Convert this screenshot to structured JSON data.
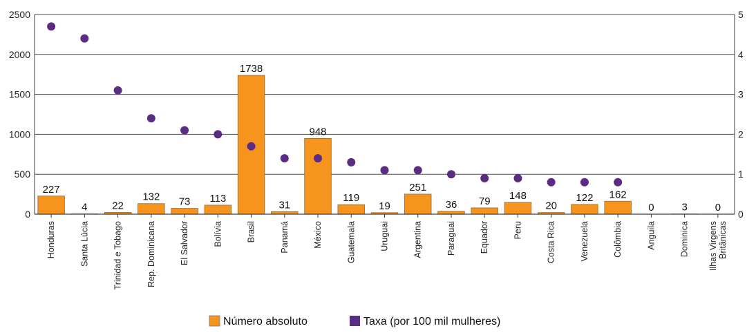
{
  "chart_data": {
    "type": "bar",
    "categories": [
      "Honduras",
      "Santa Lúcia",
      "Trinidad e Tobago",
      "Rep. Dominicana",
      "El Salvador",
      "Bolívia",
      "Brasil",
      "Panamá",
      "México",
      "Guatemala",
      "Uruguai",
      "Argentina",
      "Paraguai",
      "Equador",
      "Peru",
      "Costa Rica",
      "Venezuela",
      "Colômbia",
      "Anguila",
      "Dominica",
      "Ilhas Virgens Britânicas"
    ],
    "series": [
      {
        "name": "Número absoluto",
        "type": "bar",
        "axis": "left",
        "color": "#F7941D",
        "values": [
          227,
          4,
          22,
          132,
          73,
          113,
          1738,
          31,
          948,
          119,
          19,
          251,
          36,
          79,
          148,
          20,
          122,
          162,
          0,
          3,
          0
        ],
        "labels": [
          "227",
          "4",
          "22",
          "132",
          "73",
          "113",
          "1738",
          "31",
          "948",
          "119",
          "19",
          "251",
          "36",
          "79",
          "148",
          "20",
          "122",
          "162",
          "0",
          "3",
          "0"
        ]
      },
      {
        "name": "Taxa (por 100 mil mulheres)",
        "type": "scatter",
        "axis": "right",
        "color": "#5B2C83",
        "values": [
          4.7,
          4.4,
          3.1,
          2.4,
          2.1,
          2.0,
          1.7,
          1.4,
          1.4,
          1.3,
          1.1,
          1.1,
          1.0,
          0.9,
          0.9,
          0.8,
          0.8,
          0.8,
          null,
          null,
          null
        ]
      }
    ],
    "ylim": [
      0,
      2500
    ],
    "yticks": [
      "0",
      "500",
      "1000",
      "1500",
      "2000",
      "2500"
    ],
    "ylim_right": [
      0,
      5
    ],
    "yticks_right": [
      "0",
      "1",
      "2",
      "3",
      "4",
      "5"
    ],
    "grid": true,
    "legend_position": "bottom"
  }
}
